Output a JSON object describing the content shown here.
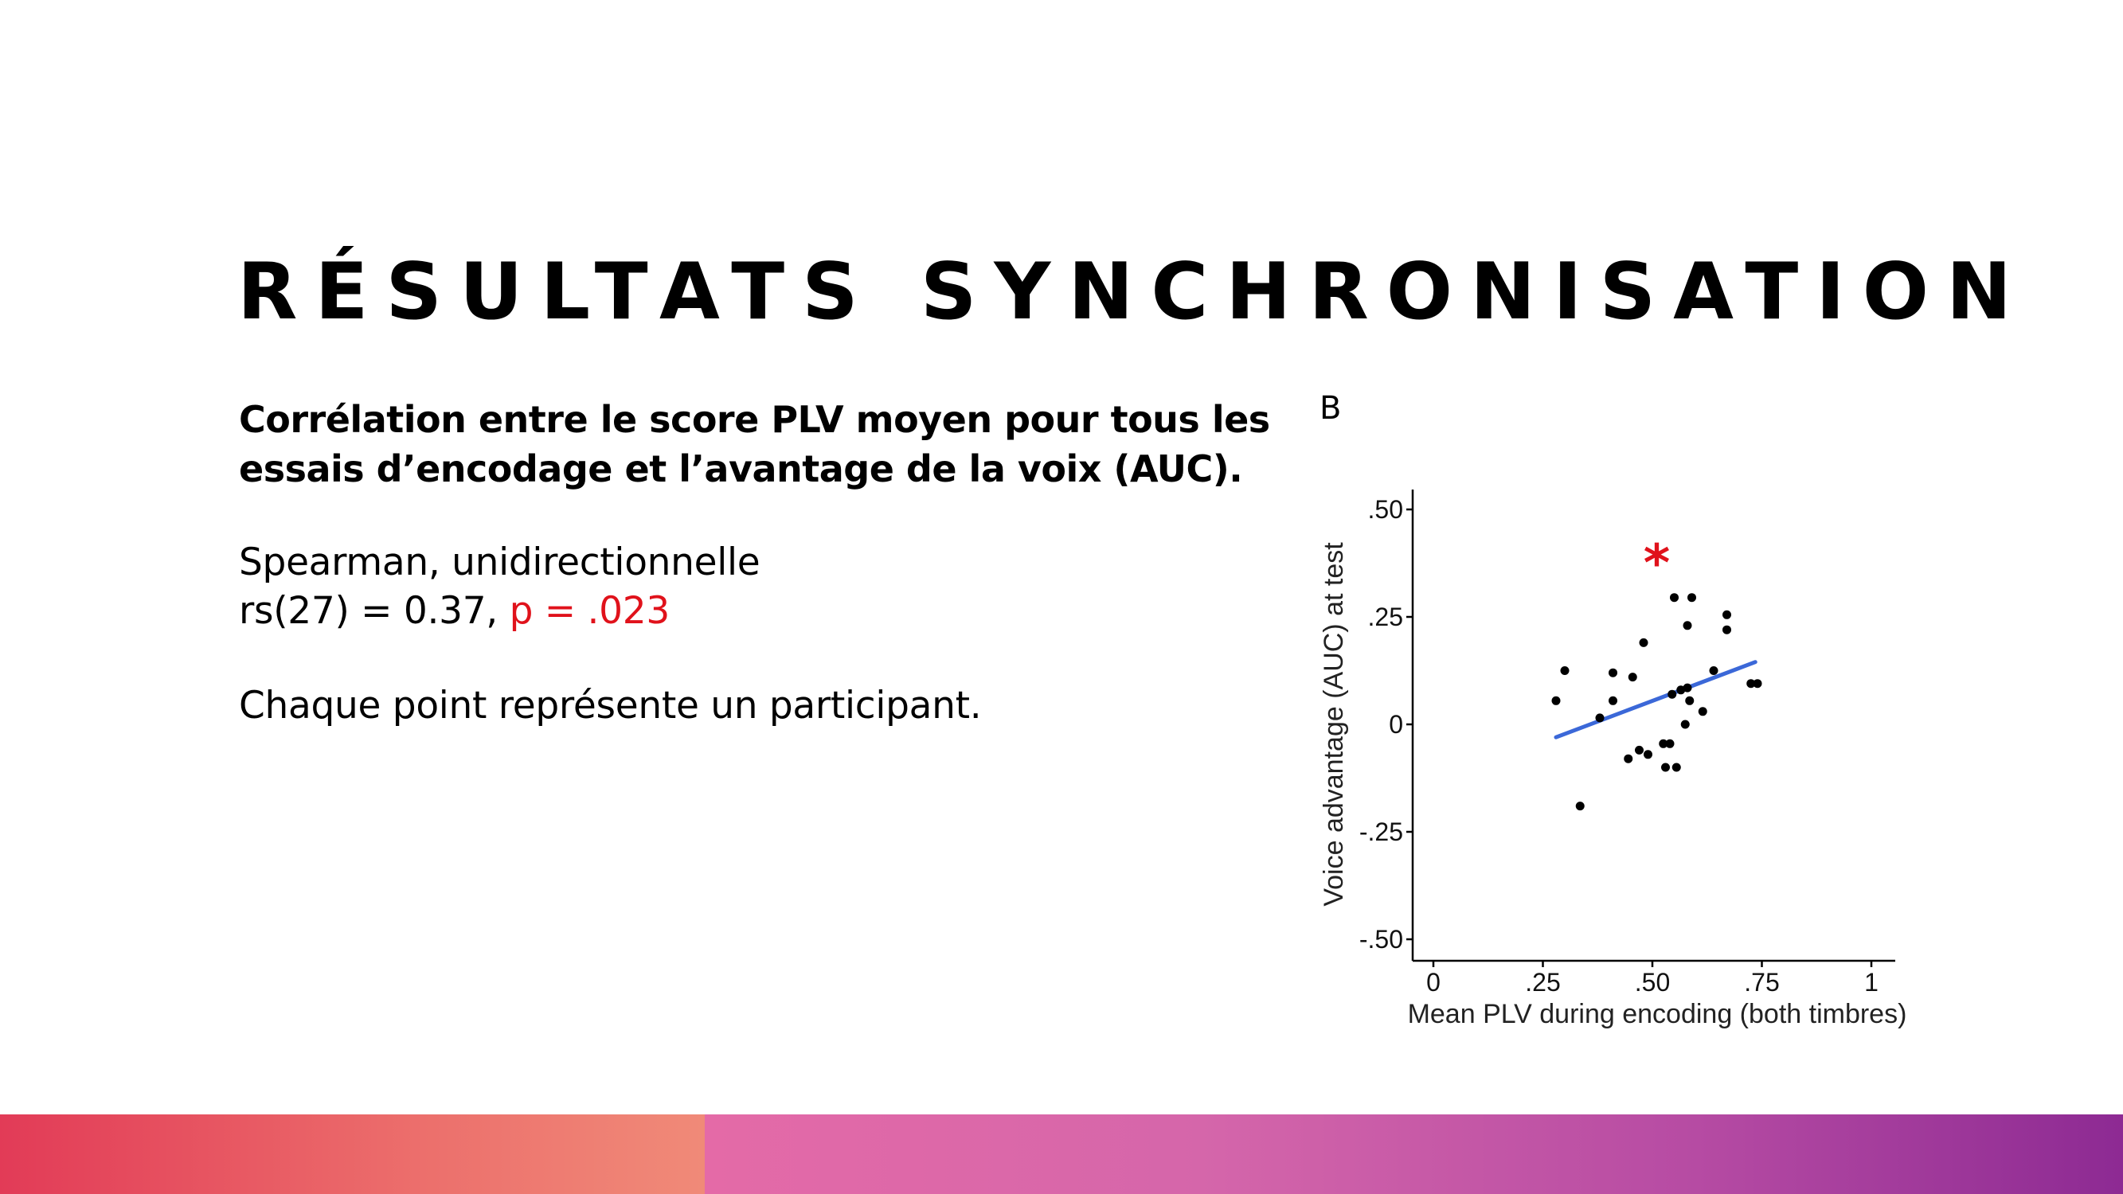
{
  "slide": {
    "title": "RÉSULTATS SYNCHRONISATION",
    "subtitle": "Corrélation entre le score PLV moyen pour tous les essais d’encodage et l’avantage de la voix (AUC).",
    "method": "Spearman, unidirectionnelle",
    "stat_prefix": "rs(27) = 0.37, ",
    "stat_p": "p = .023",
    "note": "Chaque point représente un participant.",
    "panel_letter": "B",
    "colors": {
      "accent_red": "#e0121b",
      "fit_line": "#3b68d8"
    }
  },
  "chart_data": {
    "type": "scatter",
    "xlabel": "Mean PLV during encoding (both timbres)",
    "ylabel": "Voice advantage (AUC) at test",
    "xlim": [
      0,
      1
    ],
    "ylim": [
      -0.5,
      0.5
    ],
    "x_ticks": [
      0,
      0.25,
      0.5,
      0.75,
      1
    ],
    "x_tick_labels": [
      "0",
      ".25",
      ".50",
      ".75",
      "1"
    ],
    "y_ticks": [
      0.5,
      0.25,
      0,
      -0.25,
      -0.5
    ],
    "y_tick_labels": [
      ".50",
      ".25",
      "0",
      "-.25",
      "-.50"
    ],
    "annotation": "*",
    "grid": false,
    "points": [
      {
        "x": 0.28,
        "y": 0.055
      },
      {
        "x": 0.3,
        "y": 0.125
      },
      {
        "x": 0.335,
        "y": -0.19
      },
      {
        "x": 0.38,
        "y": 0.015
      },
      {
        "x": 0.41,
        "y": 0.12
      },
      {
        "x": 0.41,
        "y": 0.055
      },
      {
        "x": 0.445,
        "y": -0.08
      },
      {
        "x": 0.455,
        "y": 0.11
      },
      {
        "x": 0.47,
        "y": -0.06
      },
      {
        "x": 0.48,
        "y": 0.19
      },
      {
        "x": 0.49,
        "y": -0.07
      },
      {
        "x": 0.525,
        "y": -0.045
      },
      {
        "x": 0.53,
        "y": -0.1
      },
      {
        "x": 0.54,
        "y": -0.045
      },
      {
        "x": 0.545,
        "y": 0.07
      },
      {
        "x": 0.55,
        "y": 0.295
      },
      {
        "x": 0.555,
        "y": -0.1
      },
      {
        "x": 0.565,
        "y": 0.08
      },
      {
        "x": 0.575,
        "y": 0.0
      },
      {
        "x": 0.58,
        "y": 0.23
      },
      {
        "x": 0.58,
        "y": 0.085
      },
      {
        "x": 0.585,
        "y": 0.055
      },
      {
        "x": 0.59,
        "y": 0.295
      },
      {
        "x": 0.615,
        "y": 0.03
      },
      {
        "x": 0.64,
        "y": 0.125
      },
      {
        "x": 0.67,
        "y": 0.255
      },
      {
        "x": 0.67,
        "y": 0.22
      },
      {
        "x": 0.725,
        "y": 0.095
      },
      {
        "x": 0.74,
        "y": 0.095
      }
    ],
    "fit_line": {
      "x": [
        0.28,
        0.735
      ],
      "y": [
        -0.03,
        0.145
      ]
    }
  }
}
